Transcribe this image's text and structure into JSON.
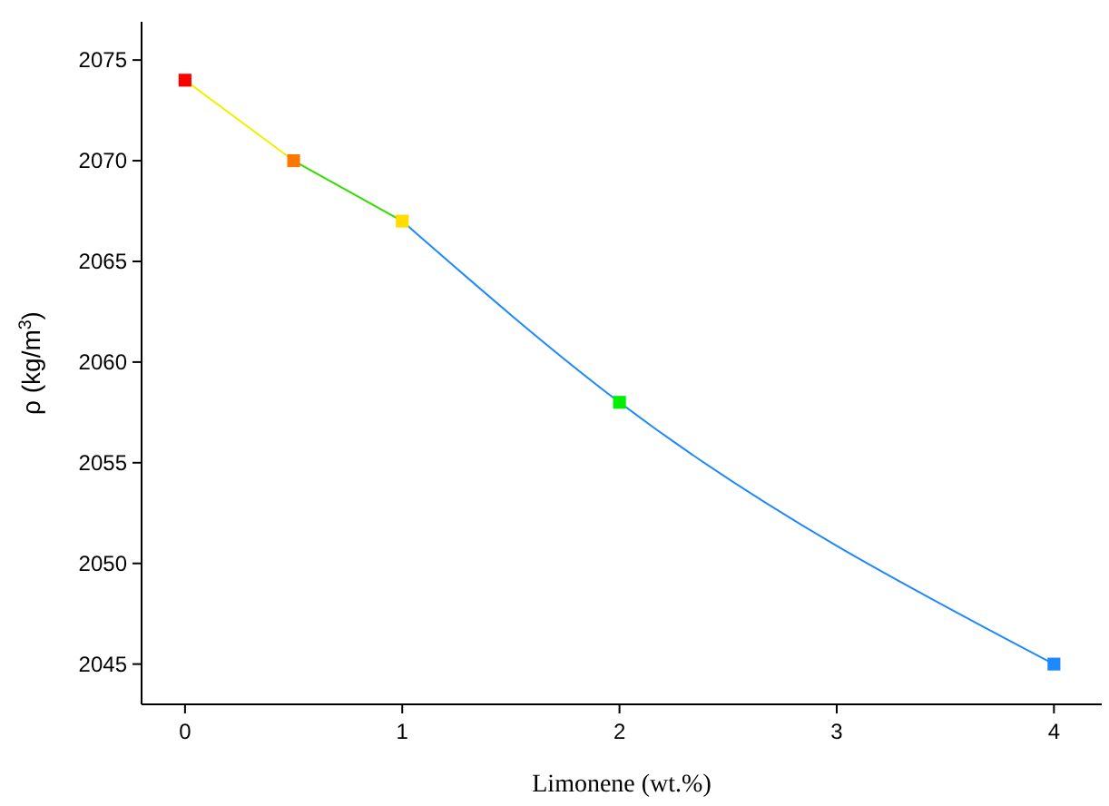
{
  "chart_data": {
    "type": "line",
    "xlabel": "Limonene (wt.%)",
    "ylabel": "ρ (kg/m$^{3}$)",
    "xlim": [
      -0.2,
      4.22
    ],
    "xticks": [
      0,
      1,
      2,
      3,
      4
    ],
    "ylim": [
      2043,
      2076.9
    ],
    "yticks": [
      2045,
      2050,
      2055,
      2060,
      2065,
      2070,
      2075
    ],
    "grid": false,
    "series": [
      {
        "color": "#f0f000",
        "x": [
          0,
          0.5
        ],
        "values": [
          2074,
          2070
        ],
        "marker": "none"
      },
      {
        "color": "#33dd00",
        "x": [
          0.5,
          1
        ],
        "values": [
          2070,
          2067
        ],
        "marker": "none"
      },
      {
        "color": "#1e88ff",
        "x": [
          1,
          2,
          4
        ],
        "values": [
          2067,
          2058,
          2045
        ],
        "marker": "none"
      },
      {
        "type": "scatter",
        "x": [
          0,
          0.5,
          1,
          2,
          4
        ],
        "values": [
          2074,
          2070,
          2067,
          2058,
          2045
        ],
        "marker": "square",
        "colors": [
          "#ff0000",
          "#ff7700",
          "#ffdd00",
          "#00ee00",
          "#1e88ff"
        ]
      }
    ]
  }
}
